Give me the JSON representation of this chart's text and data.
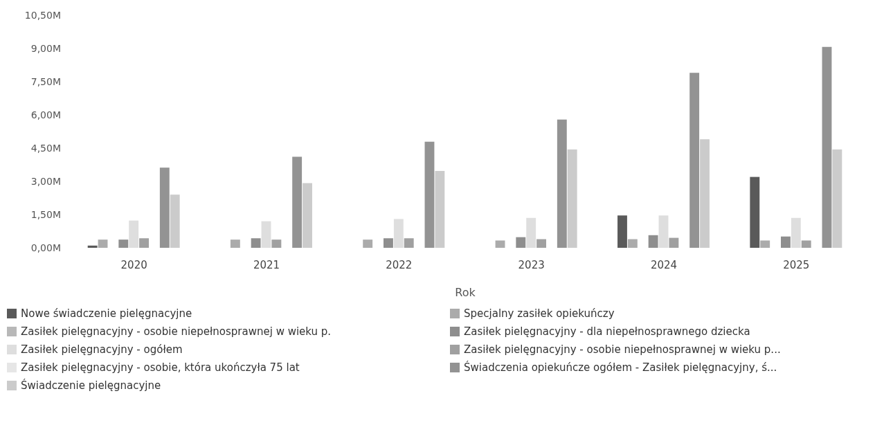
{
  "chart_data": {
    "type": "bar",
    "xlabel": "Rok",
    "categories": [
      "2020",
      "2021",
      "2022",
      "2023",
      "2024",
      "2025"
    ],
    "ylim": [
      0,
      10.5
    ],
    "yticks": [
      {
        "value": 0,
        "label": "0,00M"
      },
      {
        "value": 1.5,
        "label": "1,50M"
      },
      {
        "value": 3,
        "label": "3,00M"
      },
      {
        "value": 4.5,
        "label": "4,50M"
      },
      {
        "value": 6,
        "label": "6,00M"
      },
      {
        "value": 7.5,
        "label": "7,50M"
      },
      {
        "value": 9,
        "label": "9,00M"
      },
      {
        "value": 10.5,
        "label": "10,50M"
      }
    ],
    "legend": "bottom",
    "grid": false,
    "series": [
      {
        "name": "Nowe świadczenie pielęgnacyjne",
        "color": "#5a5a5a",
        "values": [
          0.1,
          null,
          null,
          null,
          1.46,
          3.2
        ]
      },
      {
        "name": "Specjalny zasiłek opiekuńczy",
        "color": "#ababab",
        "values": [
          0.37,
          0.37,
          0.37,
          0.33,
          0.39,
          0.33
        ]
      },
      {
        "name": "Zasiłek pielęgnacyjny -  osobie niepełnosprawnej w wieku p.",
        "color": "#b8b8b8",
        "values": [
          null,
          null,
          null,
          null,
          null,
          null
        ]
      },
      {
        "name": "Zasiłek pielęgnacyjny - dla niepełnosprawnego dziecka",
        "color": "#8e8e8e",
        "values": [
          0.37,
          0.43,
          0.43,
          0.48,
          0.57,
          0.51
        ]
      },
      {
        "name": "Zasiłek pielęgnacyjny - ogółem",
        "color": "#dedede",
        "values": [
          1.23,
          1.2,
          1.3,
          1.35,
          1.46,
          1.35
        ]
      },
      {
        "name": "Zasiłek pielęgnacyjny - osobie niepełnosprawnej w wieku p...",
        "color": "#a0a0a0",
        "values": [
          0.43,
          0.37,
          0.43,
          0.39,
          0.45,
          0.33
        ]
      },
      {
        "name": "Zasiłek pielęgnacyjny - osobie, która ukończyła 75 lat",
        "color": "#e6e6e6",
        "values": [
          null,
          null,
          null,
          null,
          null,
          null
        ]
      },
      {
        "name": "Świadczenia opiekuńcze ogółem - Zasiłek pielęgnacyjny, ś...",
        "color": "#939393",
        "values": [
          3.62,
          4.11,
          4.79,
          5.79,
          7.9,
          9.07
        ]
      },
      {
        "name": "Świadczenie pielęgnacyjne",
        "color": "#cbcbcb",
        "values": [
          2.4,
          2.92,
          3.47,
          4.44,
          4.9,
          4.44
        ]
      }
    ]
  }
}
